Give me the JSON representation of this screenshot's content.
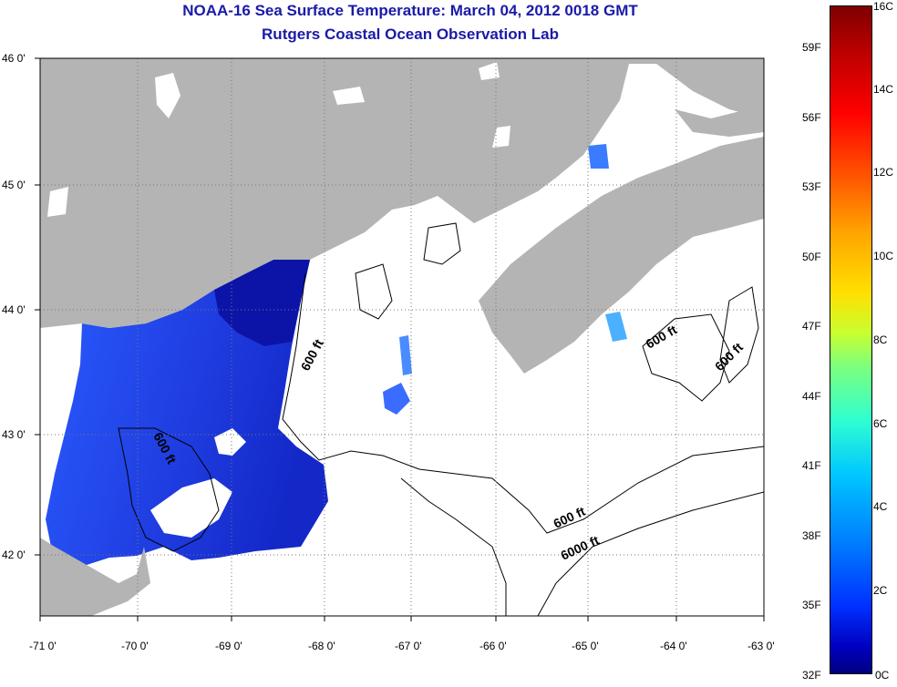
{
  "title": "NOAA-16 Sea Surface Temperature:  March 04, 2012 0018 GMT",
  "subtitle": "Rutgers Coastal Ocean Observation Lab",
  "map": {
    "lon_labels": [
      "-71 0'",
      "-70 0'",
      "-69 0'",
      "-68 0'",
      "-67 0'",
      "-66 0'",
      "-65 0'",
      "-64 0'",
      "-63 0'"
    ],
    "lat_labels": [
      "46 0'",
      "45 0'",
      "44 0'",
      "43 0'",
      "42 0'"
    ],
    "contour_labels": [
      "600 ft",
      "600 ft",
      "600 ft",
      "600 ft",
      "600 ft",
      "6000 ft"
    ],
    "colors": {
      "land": "#b4b4b4",
      "cloud": "#ffffff",
      "water_cold": "#1a3cff",
      "water_dark": "#0a10a0"
    }
  },
  "colorbar": {
    "celsius": [
      "16C",
      "14C",
      "12C",
      "10C",
      "8C",
      "6C",
      "4C",
      "2C",
      "0C"
    ],
    "fahrenheit": [
      "59F",
      "56F",
      "53F",
      "50F",
      "47F",
      "44F",
      "41F",
      "38F",
      "35F",
      "32F"
    ]
  }
}
